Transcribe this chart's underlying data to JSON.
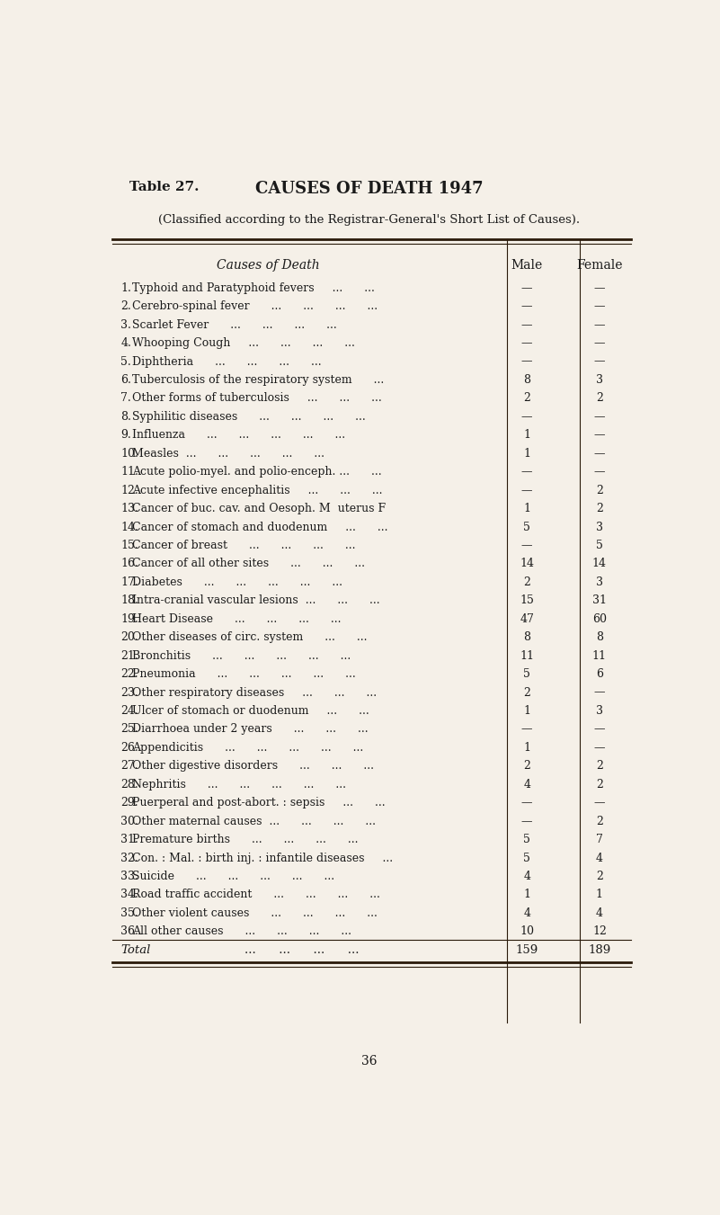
{
  "title": "Table 27.",
  "main_title": "CAUSES OF DEATH 1947",
  "subtitle": "(Classified according to the Registrar-General's Short List of Causes).",
  "col_header_cause": "Causes of Death",
  "col_header_male": "Male",
  "col_header_female": "Female",
  "bg_color": "#f5f0e8",
  "rows": [
    {
      "num": "1.",
      "cause": "Typhoid and Paratyphoid fevers     ...      ...",
      "male": "—",
      "female": "—"
    },
    {
      "num": "2.",
      "cause": "Cerebro-spinal fever      ...      ...      ...      ...",
      "male": "—",
      "female": "—"
    },
    {
      "num": "3.",
      "cause": "Scarlet Fever      ...      ...      ...      ...",
      "male": "—",
      "female": "—"
    },
    {
      "num": "4.",
      "cause": "Whooping Cough     ...      ...      ...      ...",
      "male": "—",
      "female": "—"
    },
    {
      "num": "5.",
      "cause": "Diphtheria      ...      ...      ...      ...",
      "male": "—",
      "female": "—"
    },
    {
      "num": "6.",
      "cause": "Tuberculosis of the respiratory system      ...",
      "male": "8",
      "female": "3"
    },
    {
      "num": "7.",
      "cause": "Other forms of tuberculosis     ...      ...      ...",
      "male": "2",
      "female": "2"
    },
    {
      "num": "8.",
      "cause": "Syphilitic diseases      ...      ...      ...      ...",
      "male": "—",
      "female": "—"
    },
    {
      "num": "9.",
      "cause": "Influenza      ...      ...      ...      ...      ...",
      "male": "1",
      "female": "—"
    },
    {
      "num": "10.",
      "cause": "Measles  ...      ...      ...      ...      ...",
      "male": "1",
      "female": "—"
    },
    {
      "num": "11.",
      "cause": "Acute polio-myel. and polio-enceph. ...      ...",
      "male": "—",
      "female": "—"
    },
    {
      "num": "12.",
      "cause": "Acute infective encephalitis     ...      ...      ...",
      "male": "—",
      "female": "2"
    },
    {
      "num": "13.",
      "cause": "Cancer of buc. cav. and Oesoph. M  uterus F",
      "male": "1",
      "female": "2"
    },
    {
      "num": "14.",
      "cause": "Cancer of stomach and duodenum     ...      ...",
      "male": "5",
      "female": "3"
    },
    {
      "num": "15.",
      "cause": "Cancer of breast      ...      ...      ...      ...",
      "male": "—",
      "female": "5"
    },
    {
      "num": "16.",
      "cause": "Cancer of all other sites      ...      ...      ...",
      "male": "14",
      "female": "14"
    },
    {
      "num": "17.",
      "cause": "Diabetes      ...      ...      ...      ...      ...",
      "male": "2",
      "female": "3"
    },
    {
      "num": "18.",
      "cause": "Intra-cranial vascular lesions  ...      ...      ...",
      "male": "15",
      "female": "31"
    },
    {
      "num": "19.",
      "cause": "Heart Disease      ...      ...      ...      ...",
      "male": "47",
      "female": "60"
    },
    {
      "num": "20.",
      "cause": "Other diseases of circ. system      ...      ...",
      "male": "8",
      "female": "8"
    },
    {
      "num": "21.",
      "cause": "Bronchitis      ...      ...      ...      ...      ...",
      "male": "11",
      "female": "11"
    },
    {
      "num": "22.",
      "cause": "Pneumonia      ...      ...      ...      ...      ...",
      "male": "5",
      "female": "6"
    },
    {
      "num": "23.",
      "cause": "Other respiratory diseases     ...      ...      ...",
      "male": "2",
      "female": "—"
    },
    {
      "num": "24.",
      "cause": "Ulcer of stomach or duodenum     ...      ...",
      "male": "1",
      "female": "3"
    },
    {
      "num": "25.",
      "cause": "Diarrhoea under 2 years      ...      ...      ...",
      "male": "—",
      "female": "—"
    },
    {
      "num": "26.",
      "cause": "Appendicitis      ...      ...      ...      ...      ...",
      "male": "1",
      "female": "—"
    },
    {
      "num": "27.",
      "cause": "Other digestive disorders      ...      ...      ...",
      "male": "2",
      "female": "2"
    },
    {
      "num": "28.",
      "cause": "Nephritis      ...      ...      ...      ...      ...",
      "male": "4",
      "female": "2"
    },
    {
      "num": "29.",
      "cause": "Puerperal and post-abort. : sepsis     ...      ...",
      "male": "—",
      "female": "—"
    },
    {
      "num": "30.",
      "cause": "Other maternal causes  ...      ...      ...      ...",
      "male": "—",
      "female": "2"
    },
    {
      "num": "31.",
      "cause": "Premature births      ...      ...      ...      ...",
      "male": "5",
      "female": "7"
    },
    {
      "num": "32.",
      "cause": "Con. : Mal. : birth inj. : infantile diseases     ...",
      "male": "5",
      "female": "4"
    },
    {
      "num": "33.",
      "cause": "Suicide      ...      ...      ...      ...      ...",
      "male": "4",
      "female": "2"
    },
    {
      "num": "34.",
      "cause": "Road traffic accident      ...      ...      ...      ...",
      "male": "1",
      "female": "1"
    },
    {
      "num": "35.",
      "cause": "Other violent causes      ...      ...      ...      ...",
      "male": "4",
      "female": "4"
    },
    {
      "num": "36.",
      "cause": "All other causes      ...      ...      ...      ...",
      "male": "10",
      "female": "12"
    }
  ],
  "total_label": "Total",
  "total_dots": "...      ...      ...      ...",
  "total_male": "159",
  "total_female": "189",
  "page_number": "36"
}
